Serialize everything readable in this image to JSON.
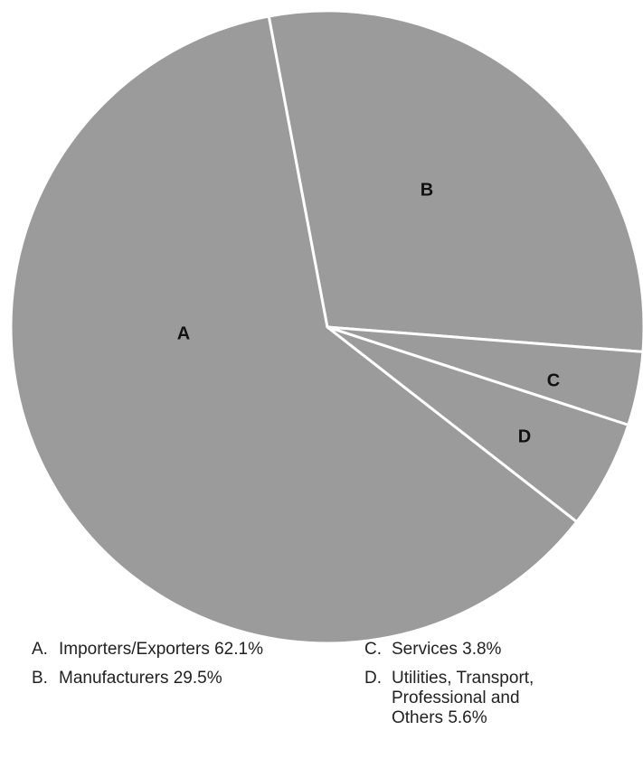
{
  "chart_data": {
    "type": "pie",
    "categories": [
      "Importers/Exporters",
      "Manufacturers",
      "Services",
      "Utilities, Transport, Professional and Others"
    ],
    "values": [
      62.1,
      29.5,
      3.8,
      5.6
    ],
    "value_labels": [
      "62.1%",
      "29.5%",
      "3.8%",
      "5.6%"
    ],
    "slice_labels": [
      "A",
      "B",
      "C",
      "D"
    ],
    "legend_keys": [
      "A.",
      "B.",
      "C.",
      "D."
    ],
    "color": "#9b9b9b"
  }
}
